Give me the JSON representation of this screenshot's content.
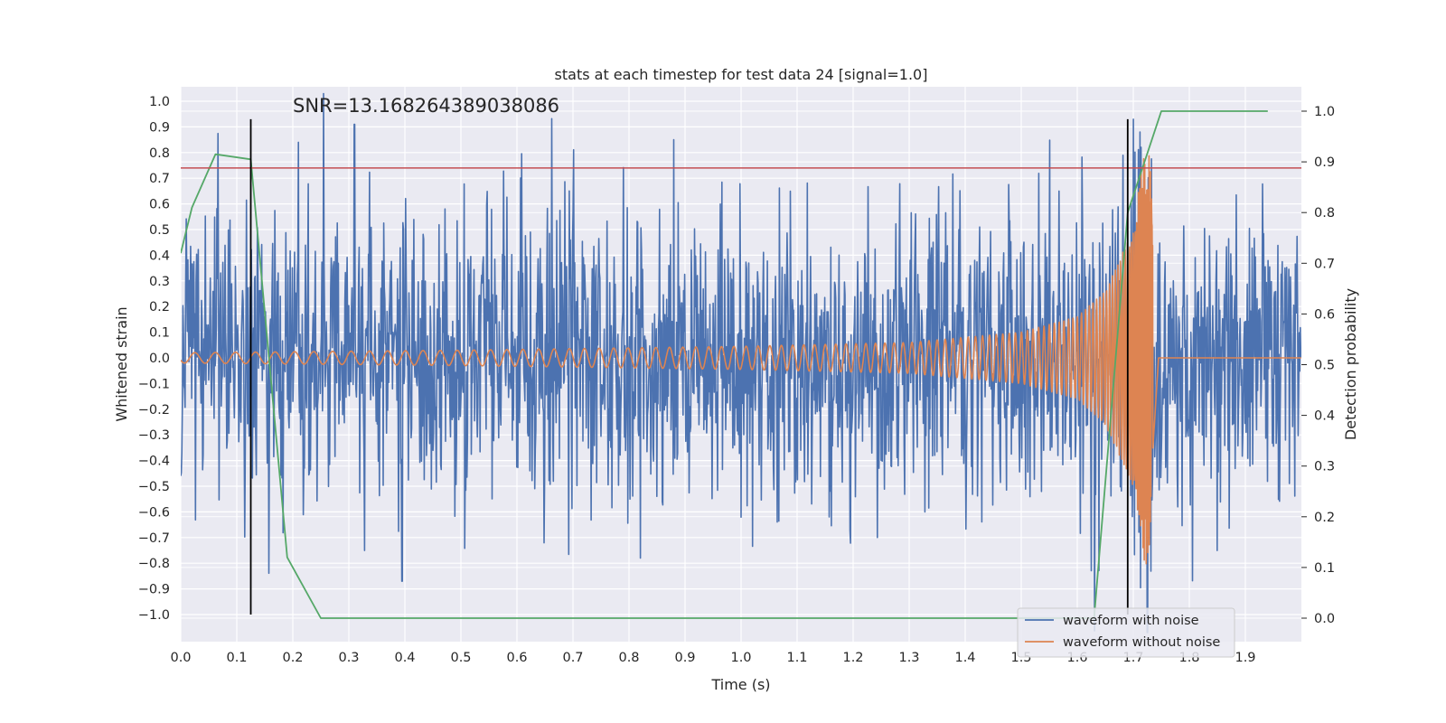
{
  "chart_data": {
    "type": "line",
    "title": "stats at each timestep for test data 24 [signal=1.0]",
    "xlabel": "Time (s)",
    "ylabel": "Whitened strain",
    "y2label": "Detection probability",
    "xlim": [
      0.0,
      2.0
    ],
    "ylim": [
      -1.09,
      1.03
    ],
    "y2lim": [
      -0.05,
      1.05
    ],
    "x_ticks": [
      "0.0",
      "0.1",
      "0.2",
      "0.3",
      "0.4",
      "0.5",
      "0.6",
      "0.7",
      "0.8",
      "0.9",
      "1.0",
      "1.1",
      "1.2",
      "1.3",
      "1.4",
      "1.5",
      "1.6",
      "1.7",
      "1.8",
      "1.9"
    ],
    "y_ticks": [
      "1.0",
      "0.9",
      "0.8",
      "0.7",
      "0.6",
      "0.5",
      "0.4",
      "0.3",
      "0.2",
      "0.1",
      "0.0",
      "−0.1",
      "−0.2",
      "−0.3",
      "−0.4",
      "−0.5",
      "−0.6",
      "−0.7",
      "−0.8",
      "−0.9",
      "−1.0"
    ],
    "y2_ticks": [
      "1.0",
      "0.9",
      "0.8",
      "0.7",
      "0.6",
      "0.5",
      "0.4",
      "0.3",
      "0.2",
      "0.1",
      "0.0"
    ],
    "annotation": "SNR=13.168264389038086",
    "grid": true,
    "legend_position": "lower-right",
    "series": [
      {
        "name": "waveform with noise",
        "color": "#4c72b0",
        "axis": "left",
        "x_range": [
          0.0,
          2.0
        ],
        "amplitude_std": 0.28,
        "notable_peaks": [
          [
            0.21,
            0.84
          ],
          [
            0.255,
            1.03
          ],
          [
            0.31,
            0.91
          ],
          [
            0.395,
            -0.87
          ],
          [
            0.82,
            -0.78
          ],
          [
            0.88,
            0.85
          ],
          [
            1.7,
            0.93
          ],
          [
            1.725,
            -1.07
          ]
        ]
      },
      {
        "name": "waveform without noise",
        "color": "#dd8452",
        "axis": "left",
        "kind": "chirp",
        "x_range": [
          0.0,
          2.0
        ],
        "merger_time": 1.73,
        "envelope": [
          [
            0.0,
            0.02
          ],
          [
            0.5,
            0.03
          ],
          [
            1.0,
            0.045
          ],
          [
            1.3,
            0.06
          ],
          [
            1.5,
            0.1
          ],
          [
            1.6,
            0.16
          ],
          [
            1.65,
            0.26
          ],
          [
            1.7,
            0.5
          ],
          [
            1.72,
            0.82
          ],
          [
            1.73,
            0.78
          ],
          [
            1.745,
            0.0
          ]
        ]
      },
      {
        "name": "",
        "color": "#55a868",
        "axis": "right",
        "x": [
          0.0,
          0.02,
          0.062,
          0.125,
          0.19,
          0.25,
          1.63,
          1.69,
          1.75,
          1.94
        ],
        "y": [
          0.72,
          0.81,
          0.915,
          0.905,
          0.12,
          0.0,
          0.0,
          0.8,
          1.0,
          1.0
        ]
      }
    ],
    "hlines": [
      {
        "y": 0.74,
        "axis": "left",
        "color": "#c44e52"
      }
    ],
    "vlines": [
      {
        "x": 0.125,
        "ymin": -1.0,
        "ymax": 0.93,
        "color": "#000000"
      },
      {
        "x": 1.69,
        "ymin": -1.0,
        "ymax": 0.93,
        "color": "#000000"
      }
    ]
  }
}
